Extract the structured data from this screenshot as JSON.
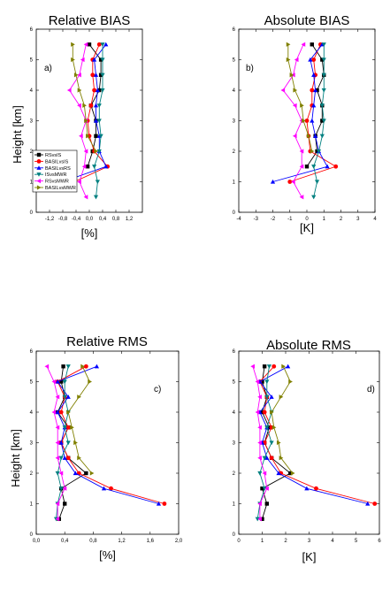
{
  "colors": {
    "RSvsIS": "#000000",
    "BASILvsIS": "#ff0000",
    "BASILvsRS": "#0000ff",
    "ISvsMWR": "#008080",
    "RSvsMWR": "#ff00ff",
    "BASILvsMWR": "#808000"
  },
  "ylabel_shared": "Height [km]",
  "legend": [
    "RSvsIS",
    "BASILvsIS",
    "BASILvsRS",
    "ISvsMWR",
    "RSvsMWR",
    "BASILvsMWR"
  ],
  "chart_data": [
    {
      "type": "line",
      "title": "Relative BIAS",
      "panel_label": "a)",
      "xlabel": "[%]",
      "ylabel": "Height [km]",
      "xlim": [
        -1.6,
        1.6
      ],
      "ylim": [
        0,
        6
      ],
      "xticks": [
        "-1,2",
        "-0,8",
        "-0,4",
        "0,0",
        "0,4",
        "0,8",
        "1,2"
      ],
      "xtick_values": [
        -1.2,
        -0.8,
        -0.4,
        0,
        0.4,
        0.8,
        1.2
      ],
      "yticks": [
        "0",
        "1",
        "2",
        "3",
        "4",
        "5",
        "6"
      ],
      "series": [
        {
          "name": "RSvsIS",
          "marker": "square",
          "y": [
            1.5,
            2,
            2.5,
            3,
            3.5,
            4,
            4.5,
            5,
            5.5
          ],
          "x": [
            -0.05,
            0.1,
            0.2,
            0.2,
            0.05,
            0.3,
            0.35,
            0.35,
            0
          ]
        },
        {
          "name": "BASILvsIS",
          "marker": "circle",
          "y": [
            1,
            1.5,
            2,
            2.5,
            3,
            3.5,
            4,
            4.5,
            5,
            5.5
          ],
          "x": [
            -0.45,
            0.55,
            0.15,
            0,
            -0.05,
            0.05,
            0.15,
            0.1,
            0.1,
            0.3
          ]
        },
        {
          "name": "BASILvsRS",
          "marker": "triangle-up",
          "y": [
            1,
            1.5,
            2,
            2.5,
            3,
            3.5,
            4,
            4.5,
            5,
            5.5
          ],
          "x": [
            -0.8,
            0.5,
            0.3,
            0.3,
            0.2,
            0.2,
            0.25,
            0.2,
            0.15,
            0.5
          ]
        },
        {
          "name": "ISvsMWR",
          "marker": "triangle-down",
          "y": [
            0.5,
            1,
            1.5,
            2,
            2.5,
            3,
            3.5,
            4,
            4.5,
            5,
            5.5
          ],
          "x": [
            0.2,
            0.25,
            0.15,
            0.3,
            0.35,
            0.3,
            0.3,
            0.4,
            0.4,
            0.4,
            0.4
          ]
        },
        {
          "name": "RSvsMWR",
          "marker": "triangle-left",
          "y": [
            0.5,
            1,
            1.5,
            2,
            2.5,
            3,
            3.5,
            4,
            4.5,
            5,
            5.5
          ],
          "x": [
            -0.1,
            -0.3,
            -0.15,
            -0.1,
            -0.25,
            -0.1,
            -0.3,
            -0.6,
            -0.3,
            -0.2,
            -0.1
          ]
        },
        {
          "name": "BASILvsMWR",
          "marker": "triangle-right",
          "y": [
            2,
            2.5,
            3,
            3.5,
            4,
            4.5,
            5,
            5.5
          ],
          "x": [
            0.2,
            -0.05,
            -0.1,
            -0.15,
            -0.3,
            -0.4,
            -0.5,
            -0.5
          ]
        }
      ]
    },
    {
      "type": "line",
      "title": "Absolute BIAS",
      "panel_label": "b)",
      "xlabel": "[K]",
      "ylabel": "",
      "xlim": [
        -4,
        4
      ],
      "ylim": [
        0,
        6
      ],
      "xticks": [
        "-4",
        "-3",
        "-2",
        "-1",
        "0",
        "1",
        "2",
        "3",
        "4"
      ],
      "xtick_values": [
        -4,
        -3,
        -2,
        -1,
        0,
        1,
        2,
        3,
        4
      ],
      "yticks": [
        "0",
        "1",
        "2",
        "3",
        "4",
        "5",
        "6"
      ],
      "series": [
        {
          "name": "RSvsIS",
          "marker": "square",
          "y": [
            1.5,
            2,
            2.5,
            3,
            3.5,
            4,
            4.5,
            5,
            5.5
          ],
          "x": [
            0,
            0.6,
            0.5,
            0.9,
            0.9,
            0.6,
            1.0,
            0.9,
            0.3
          ]
        },
        {
          "name": "BASILvsIS",
          "marker": "circle",
          "y": [
            1,
            1.5,
            2,
            2.5,
            3,
            3.5,
            4,
            4.5,
            5,
            5.5
          ],
          "x": [
            -1,
            1.7,
            0.2,
            0.1,
            0,
            0.3,
            0.3,
            0.5,
            0.4,
            0.8
          ]
        },
        {
          "name": "BASILvsRS",
          "marker": "triangle-up",
          "y": [
            1,
            1.5,
            2,
            2.5,
            3,
            3.5,
            4,
            4.5,
            5,
            5.5
          ],
          "x": [
            -2,
            1.2,
            0.7,
            0.5,
            0.3,
            0.4,
            0.5,
            0.4,
            0.2,
            0.9
          ]
        },
        {
          "name": "ISvsMWR",
          "marker": "triangle-down",
          "y": [
            0.5,
            1,
            1.5,
            2,
            2.5,
            3,
            3.5,
            4,
            4.5,
            5,
            5.5
          ],
          "x": [
            0.4,
            0.6,
            0.4,
            0.7,
            0.9,
            1.0,
            0.9,
            1.0,
            1.0,
            1.0,
            1.0
          ]
        },
        {
          "name": "RSvsMWR",
          "marker": "triangle-left",
          "y": [
            0.5,
            1,
            1.5,
            2,
            2.5,
            3,
            3.5,
            4,
            4.5,
            5,
            5.5
          ],
          "x": [
            -0.3,
            -0.8,
            -0.3,
            -0.3,
            -0.7,
            -0.3,
            -0.7,
            -1.4,
            -0.8,
            -0.6,
            -0.2
          ]
        },
        {
          "name": "BASILvsMWR",
          "marker": "triangle-right",
          "y": [
            2,
            2.5,
            3,
            3.5,
            4,
            4.5,
            5,
            5.5
          ],
          "x": [
            0.3,
            0.1,
            -0.2,
            -0.3,
            -0.7,
            -0.9,
            -1.1,
            -1.1
          ]
        }
      ]
    },
    {
      "type": "line",
      "title": "Relative RMS",
      "panel_label": "c)",
      "xlabel": "[%]",
      "ylabel": "Height [km]",
      "xlim": [
        0,
        2
      ],
      "ylim": [
        0,
        6
      ],
      "xticks": [
        "0,0",
        "0,4",
        "0,8",
        "1,2",
        "1,6",
        "2,0"
      ],
      "xtick_values": [
        0,
        0.4,
        0.8,
        1.2,
        1.6,
        2.0
      ],
      "yticks": [
        "0",
        "1",
        "2",
        "3",
        "4",
        "5",
        "6"
      ],
      "series": [
        {
          "name": "RSvsIS",
          "marker": "square",
          "y": [
            0.5,
            1,
            1.5,
            2,
            2.5,
            3,
            3.5,
            4,
            4.5,
            5,
            5.5
          ],
          "x": [
            0.32,
            0.4,
            0.35,
            0.7,
            0.45,
            0.35,
            0.45,
            0.3,
            0.4,
            0.35,
            0.38
          ]
        },
        {
          "name": "BASILvsIS",
          "marker": "circle",
          "y": [
            1,
            1.5,
            2,
            2.5,
            3,
            3.5,
            4,
            4.5,
            5,
            5.5
          ],
          "x": [
            1.8,
            1.05,
            0.6,
            0.45,
            0.35,
            0.45,
            0.35,
            0.4,
            0.3,
            0.7
          ]
        },
        {
          "name": "BASILvsRS",
          "marker": "triangle-up",
          "y": [
            1,
            1.5,
            2,
            2.5,
            3,
            3.5,
            4,
            4.5,
            5,
            5.5
          ],
          "x": [
            1.72,
            0.95,
            0.55,
            0.4,
            0.35,
            0.4,
            0.3,
            0.45,
            0.3,
            0.85
          ]
        },
        {
          "name": "ISvsMWR",
          "marker": "triangle-down",
          "y": [
            0.5,
            1,
            1.5,
            2,
            2.5,
            3,
            3.5,
            4,
            4.5,
            5,
            5.5
          ],
          "x": [
            0.28,
            0.3,
            0.35,
            0.3,
            0.35,
            0.45,
            0.4,
            0.45,
            0.4,
            0.4,
            0.45
          ]
        },
        {
          "name": "RSvsMWR",
          "marker": "triangle-left",
          "y": [
            0.5,
            1,
            1.5,
            2,
            2.5,
            3,
            3.5,
            4,
            4.5,
            5,
            5.5
          ],
          "x": [
            0.3,
            0.3,
            0.4,
            0.35,
            0.3,
            0.3,
            0.3,
            0.25,
            0.3,
            0.25,
            0.15
          ]
        },
        {
          "name": "BASILvsMWR",
          "marker": "triangle-right",
          "y": [
            2,
            2.5,
            3,
            3.5,
            4,
            4.5,
            5,
            5.5
          ],
          "x": [
            0.78,
            0.6,
            0.55,
            0.5,
            0.45,
            0.6,
            0.75,
            0.65
          ]
        }
      ]
    },
    {
      "type": "line",
      "title": "Absolute RMS",
      "panel_label": "d)",
      "xlabel": "[K]",
      "ylabel": "",
      "xlim": [
        0,
        6
      ],
      "ylim": [
        0,
        6
      ],
      "xticks": [
        "0",
        "1",
        "2",
        "3",
        "4",
        "5",
        "6"
      ],
      "xtick_values": [
        0,
        1,
        2,
        3,
        4,
        5,
        6
      ],
      "yticks": [
        "0",
        "1",
        "2",
        "3",
        "4",
        "5",
        "6"
      ],
      "series": [
        {
          "name": "RSvsIS",
          "marker": "square",
          "y": [
            0.5,
            1,
            1.5,
            2,
            2.5,
            3,
            3.5,
            4,
            4.5,
            5,
            5.5
          ],
          "x": [
            1.0,
            1.2,
            1.0,
            2.2,
            1.4,
            1.1,
            1.3,
            1.0,
            1.2,
            1.0,
            1.1
          ]
        },
        {
          "name": "BASILvsIS",
          "marker": "circle",
          "y": [
            1,
            1.5,
            2,
            2.5,
            3,
            3.5,
            4,
            4.5,
            5,
            5.5
          ],
          "x": [
            5.8,
            3.3,
            1.8,
            1.4,
            1.1,
            1.4,
            1.1,
            1.2,
            0.9,
            1.5
          ]
        },
        {
          "name": "BASILvsRS",
          "marker": "triangle-up",
          "y": [
            1,
            1.5,
            2,
            2.5,
            3,
            3.5,
            4,
            4.5,
            5,
            5.5
          ],
          "x": [
            5.5,
            2.9,
            1.7,
            1.2,
            1.0,
            1.2,
            0.9,
            1.4,
            0.9,
            2.1
          ]
        },
        {
          "name": "ISvsMWR",
          "marker": "triangle-down",
          "y": [
            0.5,
            1,
            1.5,
            2,
            2.5,
            3,
            3.5,
            4,
            4.5,
            5,
            5.5
          ],
          "x": [
            0.8,
            0.9,
            1.1,
            0.9,
            1.1,
            1.4,
            1.2,
            1.4,
            1.2,
            1.2,
            1.3
          ]
        },
        {
          "name": "RSvsMWR",
          "marker": "triangle-left",
          "y": [
            0.5,
            1,
            1.5,
            2,
            2.5,
            3,
            3.5,
            4,
            4.5,
            5,
            5.5
          ],
          "x": [
            0.9,
            0.9,
            1.2,
            1.1,
            0.9,
            0.9,
            0.9,
            0.8,
            0.9,
            0.8,
            0.6
          ]
        },
        {
          "name": "BASILvsMWR",
          "marker": "triangle-right",
          "y": [
            2,
            2.5,
            3,
            3.5,
            4,
            4.5,
            5,
            5.5
          ],
          "x": [
            2.3,
            1.8,
            1.7,
            1.5,
            1.4,
            1.8,
            2.2,
            1.9
          ]
        }
      ]
    }
  ]
}
